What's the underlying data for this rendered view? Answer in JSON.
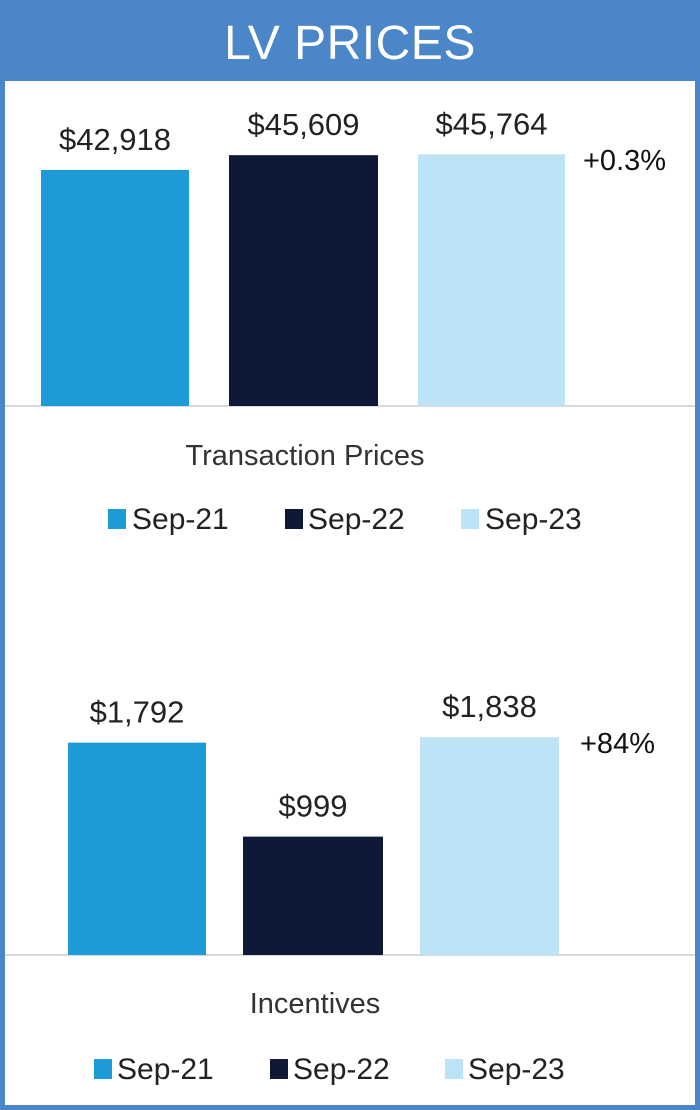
{
  "header": {
    "title": "LV PRICES",
    "color": "#4a86c8"
  },
  "chart_data": [
    {
      "type": "bar",
      "title": "Transaction Prices",
      "categories": [
        "Sep-21",
        "Sep-22",
        "Sep-23"
      ],
      "values": [
        42918,
        45609,
        45764
      ],
      "value_labels": [
        "$42,918",
        "$45,609",
        "$45,764"
      ],
      "change_label": "+0.3%",
      "colors": [
        "#1e9ad6",
        "#0e1838",
        "#bde3f6"
      ],
      "legend": [
        "Sep-21",
        "Sep-22",
        "Sep-23"
      ],
      "legend_position": "bottom",
      "grid": false
    },
    {
      "type": "bar",
      "title": "Incentives",
      "categories": [
        "Sep-21",
        "Sep-22",
        "Sep-23"
      ],
      "values": [
        1792,
        999,
        1838
      ],
      "value_labels": [
        "$1,792",
        "$999",
        "$1,838"
      ],
      "change_label": "+84%",
      "colors": [
        "#1e9ad6",
        "#0e1838",
        "#bde3f6"
      ],
      "legend": [
        "Sep-21",
        "Sep-22",
        "Sep-23"
      ],
      "legend_position": "bottom",
      "grid": false
    }
  ]
}
